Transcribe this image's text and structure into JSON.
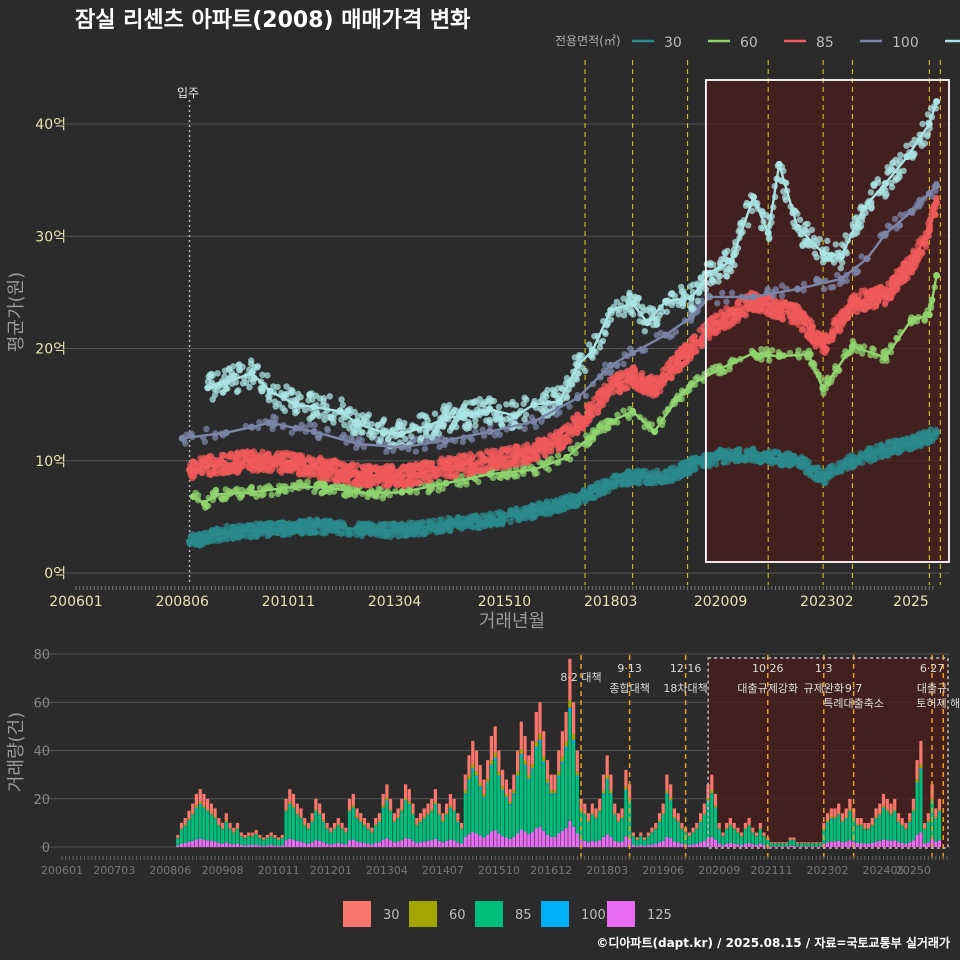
{
  "header": {
    "title": "잠실 리센츠 아파트(2008) 매매가격 변화",
    "legend_title": "전용면적(㎡)",
    "credit": "©디아파트(dapt.kr) / 2025.08.15 / 자료=국토교통부 실거래가"
  },
  "colors": {
    "s30": "#2a8a8c",
    "s60": "#8fd46e",
    "s85": "#f05a5a",
    "s100": "#7b85a8",
    "s125": "#a9e3e3",
    "b30": "#f8766d",
    "b60": "#a3a500",
    "b85": "#00bf7d",
    "b100": "#00b0f6",
    "b125": "#e76bf3",
    "band": "#4a1e1e",
    "vline": "#e6d21e",
    "vline2": "#e6a21e"
  },
  "chart_data": [
    {
      "type": "line",
      "title": "잠실 리센츠 아파트(2008) 매매가격 변화",
      "xlabel": "거래년월",
      "ylabel": "평균가(원)",
      "x_ticks": [
        "200601",
        "200806",
        "201011",
        "201304",
        "201510",
        "201803",
        "202009",
        "202302",
        "2025"
      ],
      "y_ticks": [
        "0억",
        "10억",
        "20억",
        "30억",
        "40억"
      ],
      "ylim": [
        0,
        45
      ],
      "unit": "억",
      "annotation": "입주",
      "annotation_x": "2008-08",
      "highlight_box": [
        "2020-05",
        "2025-12"
      ],
      "policy_lines": [
        "2017-08",
        "2018-09",
        "2019-12",
        "2021-10",
        "2023-01",
        "2023-09",
        "2025-06",
        "2025-09"
      ],
      "series": [
        {
          "name": "30",
          "points": [
            [
              "2008-08",
              2.8
            ],
            [
              "2009-06",
              3.6
            ],
            [
              "2010-06",
              3.9
            ],
            [
              "2011-06",
              4.2
            ],
            [
              "2012-06",
              3.9
            ],
            [
              "2013-06",
              3.8
            ],
            [
              "2014-06",
              4.3
            ],
            [
              "2015-06",
              4.7
            ],
            [
              "2016-06",
              5.5
            ],
            [
              "2017-06",
              6.5
            ],
            [
              "2018-03",
              8.0
            ],
            [
              "2018-09",
              8.6
            ],
            [
              "2019-06",
              8.5
            ],
            [
              "2020-01",
              9.6
            ],
            [
              "2020-09",
              10.4
            ],
            [
              "2021-06",
              10.5
            ],
            [
              "2022-06",
              10.0
            ],
            [
              "2023-01",
              8.5
            ],
            [
              "2023-09",
              10.0
            ],
            [
              "2024-06",
              11.0
            ],
            [
              "2025-03",
              11.8
            ],
            [
              "2025-08",
              12.5
            ]
          ]
        },
        {
          "name": "60",
          "points": [
            [
              "2008-09",
              6.8
            ],
            [
              "2008-12",
              6.2
            ],
            [
              "2009-03",
              7.0
            ],
            [
              "2010-01",
              7.2
            ],
            [
              "2011-01",
              7.7
            ],
            [
              "2011-09",
              7.6
            ],
            [
              "2012-09",
              7.1
            ],
            [
              "2013-06",
              7.2
            ],
            [
              "2014-06",
              8.0
            ],
            [
              "2015-06",
              8.8
            ],
            [
              "2016-06",
              9.2
            ],
            [
              "2017-03",
              10.3
            ],
            [
              "2017-09",
              12.0
            ],
            [
              "2018-03",
              13.5
            ],
            [
              "2018-09",
              14.4
            ],
            [
              "2019-03",
              12.6
            ],
            [
              "2019-09",
              15.5
            ],
            [
              "2020-01",
              16.8
            ],
            [
              "2020-09",
              18.2
            ],
            [
              "2021-06",
              19.6
            ],
            [
              "2022-01",
              19.3
            ],
            [
              "2022-09",
              19.5
            ],
            [
              "2023-01",
              16.4
            ],
            [
              "2023-09",
              20.2
            ],
            [
              "2024-06",
              19.2
            ],
            [
              "2025-01",
              22.5
            ],
            [
              "2025-06",
              23.0
            ],
            [
              "2025-08",
              26.5
            ]
          ]
        },
        {
          "name": "85",
          "points": [
            [
              "2008-08",
              9.2
            ],
            [
              "2009-03",
              9.6
            ],
            [
              "2010-01",
              10.0
            ],
            [
              "2010-11",
              9.8
            ],
            [
              "2011-06",
              9.5
            ],
            [
              "2012-06",
              8.7
            ],
            [
              "2013-06",
              8.6
            ],
            [
              "2014-06",
              9.4
            ],
            [
              "2015-06",
              10.0
            ],
            [
              "2016-06",
              10.8
            ],
            [
              "2017-01",
              11.8
            ],
            [
              "2017-09",
              14.2
            ],
            [
              "2018-03",
              16.5
            ],
            [
              "2018-09",
              17.5
            ],
            [
              "2019-03",
              16.5
            ],
            [
              "2019-09",
              18.7
            ],
            [
              "2020-01",
              20.0
            ],
            [
              "2020-06",
              21.8
            ],
            [
              "2021-01",
              23.2
            ],
            [
              "2021-06",
              24.3
            ],
            [
              "2022-01",
              23.5
            ],
            [
              "2022-06",
              23.0
            ],
            [
              "2023-01",
              20.2
            ],
            [
              "2023-09",
              24.0
            ],
            [
              "2024-06",
              24.8
            ],
            [
              "2025-01",
              27.5
            ],
            [
              "2025-06",
              30.5
            ],
            [
              "2025-08",
              33.0
            ]
          ]
        },
        {
          "name": "100",
          "points": [
            [
              "2008-06",
              12.0
            ],
            [
              "2009-06",
              12.5
            ],
            [
              "2010-01",
              13.0
            ],
            [
              "2010-06",
              13.4
            ],
            [
              "2011-01",
              12.9
            ],
            [
              "2011-06",
              12.6
            ],
            [
              "2012-06",
              11.5
            ],
            [
              "2013-06",
              11.2
            ],
            [
              "2014-06",
              11.8
            ],
            [
              "2015-06",
              12.6
            ],
            [
              "2016-06",
              13.5
            ],
            [
              "2017-06",
              15.6
            ],
            [
              "2018-03",
              18.5
            ],
            [
              "2018-09",
              19.6
            ],
            [
              "2019-06",
              21.2
            ],
            [
              "2020-01",
              22.8
            ],
            [
              "2020-06",
              24.6
            ],
            [
              "2021-06",
              24.6
            ],
            [
              "2022-06",
              25.3
            ],
            [
              "2023-06",
              26.2
            ],
            [
              "2024-01",
              28.0
            ],
            [
              "2024-06",
              30.2
            ],
            [
              "2025-01",
              32.2
            ],
            [
              "2025-06",
              33.8
            ],
            [
              "2025-08",
              34.5
            ]
          ]
        },
        {
          "name": "125",
          "points": [
            [
              "2009-01",
              16.5
            ],
            [
              "2009-06",
              17.0
            ],
            [
              "2010-01",
              17.8
            ],
            [
              "2010-06",
              16.2
            ],
            [
              "2011-01",
              15.0
            ],
            [
              "2011-06",
              14.8
            ],
            [
              "2012-01",
              14.4
            ],
            [
              "2012-06",
              13.3
            ],
            [
              "2013-01",
              12.5
            ],
            [
              "2013-06",
              12.4
            ],
            [
              "2014-01",
              13.1
            ],
            [
              "2014-06",
              13.8
            ],
            [
              "2015-01",
              14.1
            ],
            [
              "2015-06",
              14.6
            ],
            [
              "2016-01",
              14.0
            ],
            [
              "2016-06",
              15.0
            ],
            [
              "2017-01",
              15.3
            ],
            [
              "2017-06",
              18.5
            ],
            [
              "2017-10",
              19.8
            ],
            [
              "2018-03",
              23.4
            ],
            [
              "2018-09",
              24.0
            ],
            [
              "2019-01",
              22.3
            ],
            [
              "2019-06",
              24.2
            ],
            [
              "2020-01",
              24.5
            ],
            [
              "2020-06",
              26.7
            ],
            [
              "2020-12",
              27.8
            ],
            [
              "2021-06",
              33.5
            ],
            [
              "2021-10",
              30.3
            ],
            [
              "2022-01",
              36.4
            ],
            [
              "2022-06",
              30.8
            ],
            [
              "2023-01",
              28.5
            ],
            [
              "2023-06",
              28.2
            ],
            [
              "2023-12",
              32.5
            ],
            [
              "2024-06",
              34.7
            ],
            [
              "2024-12",
              37.1
            ],
            [
              "2025-06",
              40.0
            ],
            [
              "2025-08",
              42.0
            ]
          ]
        }
      ]
    },
    {
      "type": "bar",
      "ylabel": "거래량(건)",
      "stacked": true,
      "x_ticks": [
        "200601",
        "200703",
        "200806",
        "200908",
        "201011",
        "201201",
        "201304",
        "201407",
        "201510",
        "201612",
        "201803",
        "201906",
        "202009",
        "202111",
        "202302",
        "202405",
        "20250"
      ],
      "y_ticks": [
        "0",
        "20",
        "40",
        "60",
        "80"
      ],
      "ylim": [
        0,
        80
      ],
      "legend": [
        "30",
        "60",
        "85",
        "100",
        "125"
      ],
      "policies": [
        {
          "date": "8·2 대책",
          "x": "2017-08",
          "extra": ""
        },
        {
          "date": "9·13",
          "x": "2018-09",
          "extra": "종합대책"
        },
        {
          "date": "12·16",
          "x": "2019-12",
          "extra": "18차대책"
        },
        {
          "date": "10·26",
          "x": "2021-10",
          "extra": "대출규제강화"
        },
        {
          "date": "1·3",
          "x": "2023-01",
          "extra": "규제완화"
        },
        {
          "date": "9·7",
          "x": "2023-09",
          "extra": "특례대출축소"
        },
        {
          "date": "6·27",
          "x": "2025-06",
          "extra": "대출규"
        },
        {
          "date": "",
          "x": "2025-09",
          "extra": "토허제 해제"
        }
      ],
      "approx_monthly_totals": {
        "2008": [
          0,
          0,
          0,
          0,
          0,
          0,
          0,
          5,
          10,
          12,
          15,
          18
        ],
        "2009": [
          22,
          24,
          22,
          20,
          18,
          16,
          12,
          10,
          14,
          10,
          8,
          10
        ],
        "2010": [
          6,
          5,
          6,
          6,
          7,
          5,
          4,
          5,
          6,
          5,
          4,
          5
        ],
        "2011": [
          20,
          24,
          22,
          18,
          16,
          12,
          10,
          14,
          20,
          18,
          14,
          10
        ],
        "2012": [
          8,
          10,
          12,
          10,
          8,
          20,
          22,
          16,
          14,
          12,
          10,
          8
        ],
        "2013": [
          12,
          14,
          22,
          26,
          20,
          14,
          16,
          20,
          26,
          24,
          18,
          12
        ],
        "2014": [
          14,
          16,
          18,
          20,
          24,
          18,
          14,
          18,
          22,
          20,
          14,
          10
        ],
        "2015": [
          30,
          38,
          44,
          40,
          34,
          28,
          36,
          46,
          50,
          40,
          32,
          28
        ],
        "2016": [
          24,
          30,
          40,
          52,
          46,
          38,
          44,
          56,
          60,
          48,
          36,
          30
        ],
        "2017": [
          30,
          40,
          48,
          56,
          78,
          60,
          40,
          20,
          18,
          14,
          18,
          16
        ],
        "2018": [
          20,
          30,
          38,
          30,
          18,
          14,
          16,
          32,
          26,
          6,
          4,
          6
        ],
        "2019": [
          4,
          6,
          8,
          10,
          14,
          18,
          30,
          26,
          16,
          14,
          10,
          8
        ],
        "2020": [
          6,
          8,
          10,
          14,
          18,
          26,
          30,
          22,
          10,
          6,
          10,
          12
        ],
        "2021": [
          10,
          8,
          6,
          10,
          12,
          8,
          6,
          10,
          6,
          4,
          2,
          2
        ],
        "2022": [
          2,
          2,
          2,
          4,
          4,
          2,
          2,
          2,
          2,
          2,
          2,
          2
        ],
        "2023": [
          10,
          14,
          16,
          16,
          18,
          14,
          16,
          20,
          16,
          12,
          12,
          10
        ],
        "2024": [
          10,
          12,
          16,
          18,
          22,
          20,
          18,
          20,
          14,
          12,
          10,
          14
        ],
        "2025": [
          20,
          36,
          44,
          10,
          14,
          26,
          16,
          20
        ]
      }
    }
  ]
}
